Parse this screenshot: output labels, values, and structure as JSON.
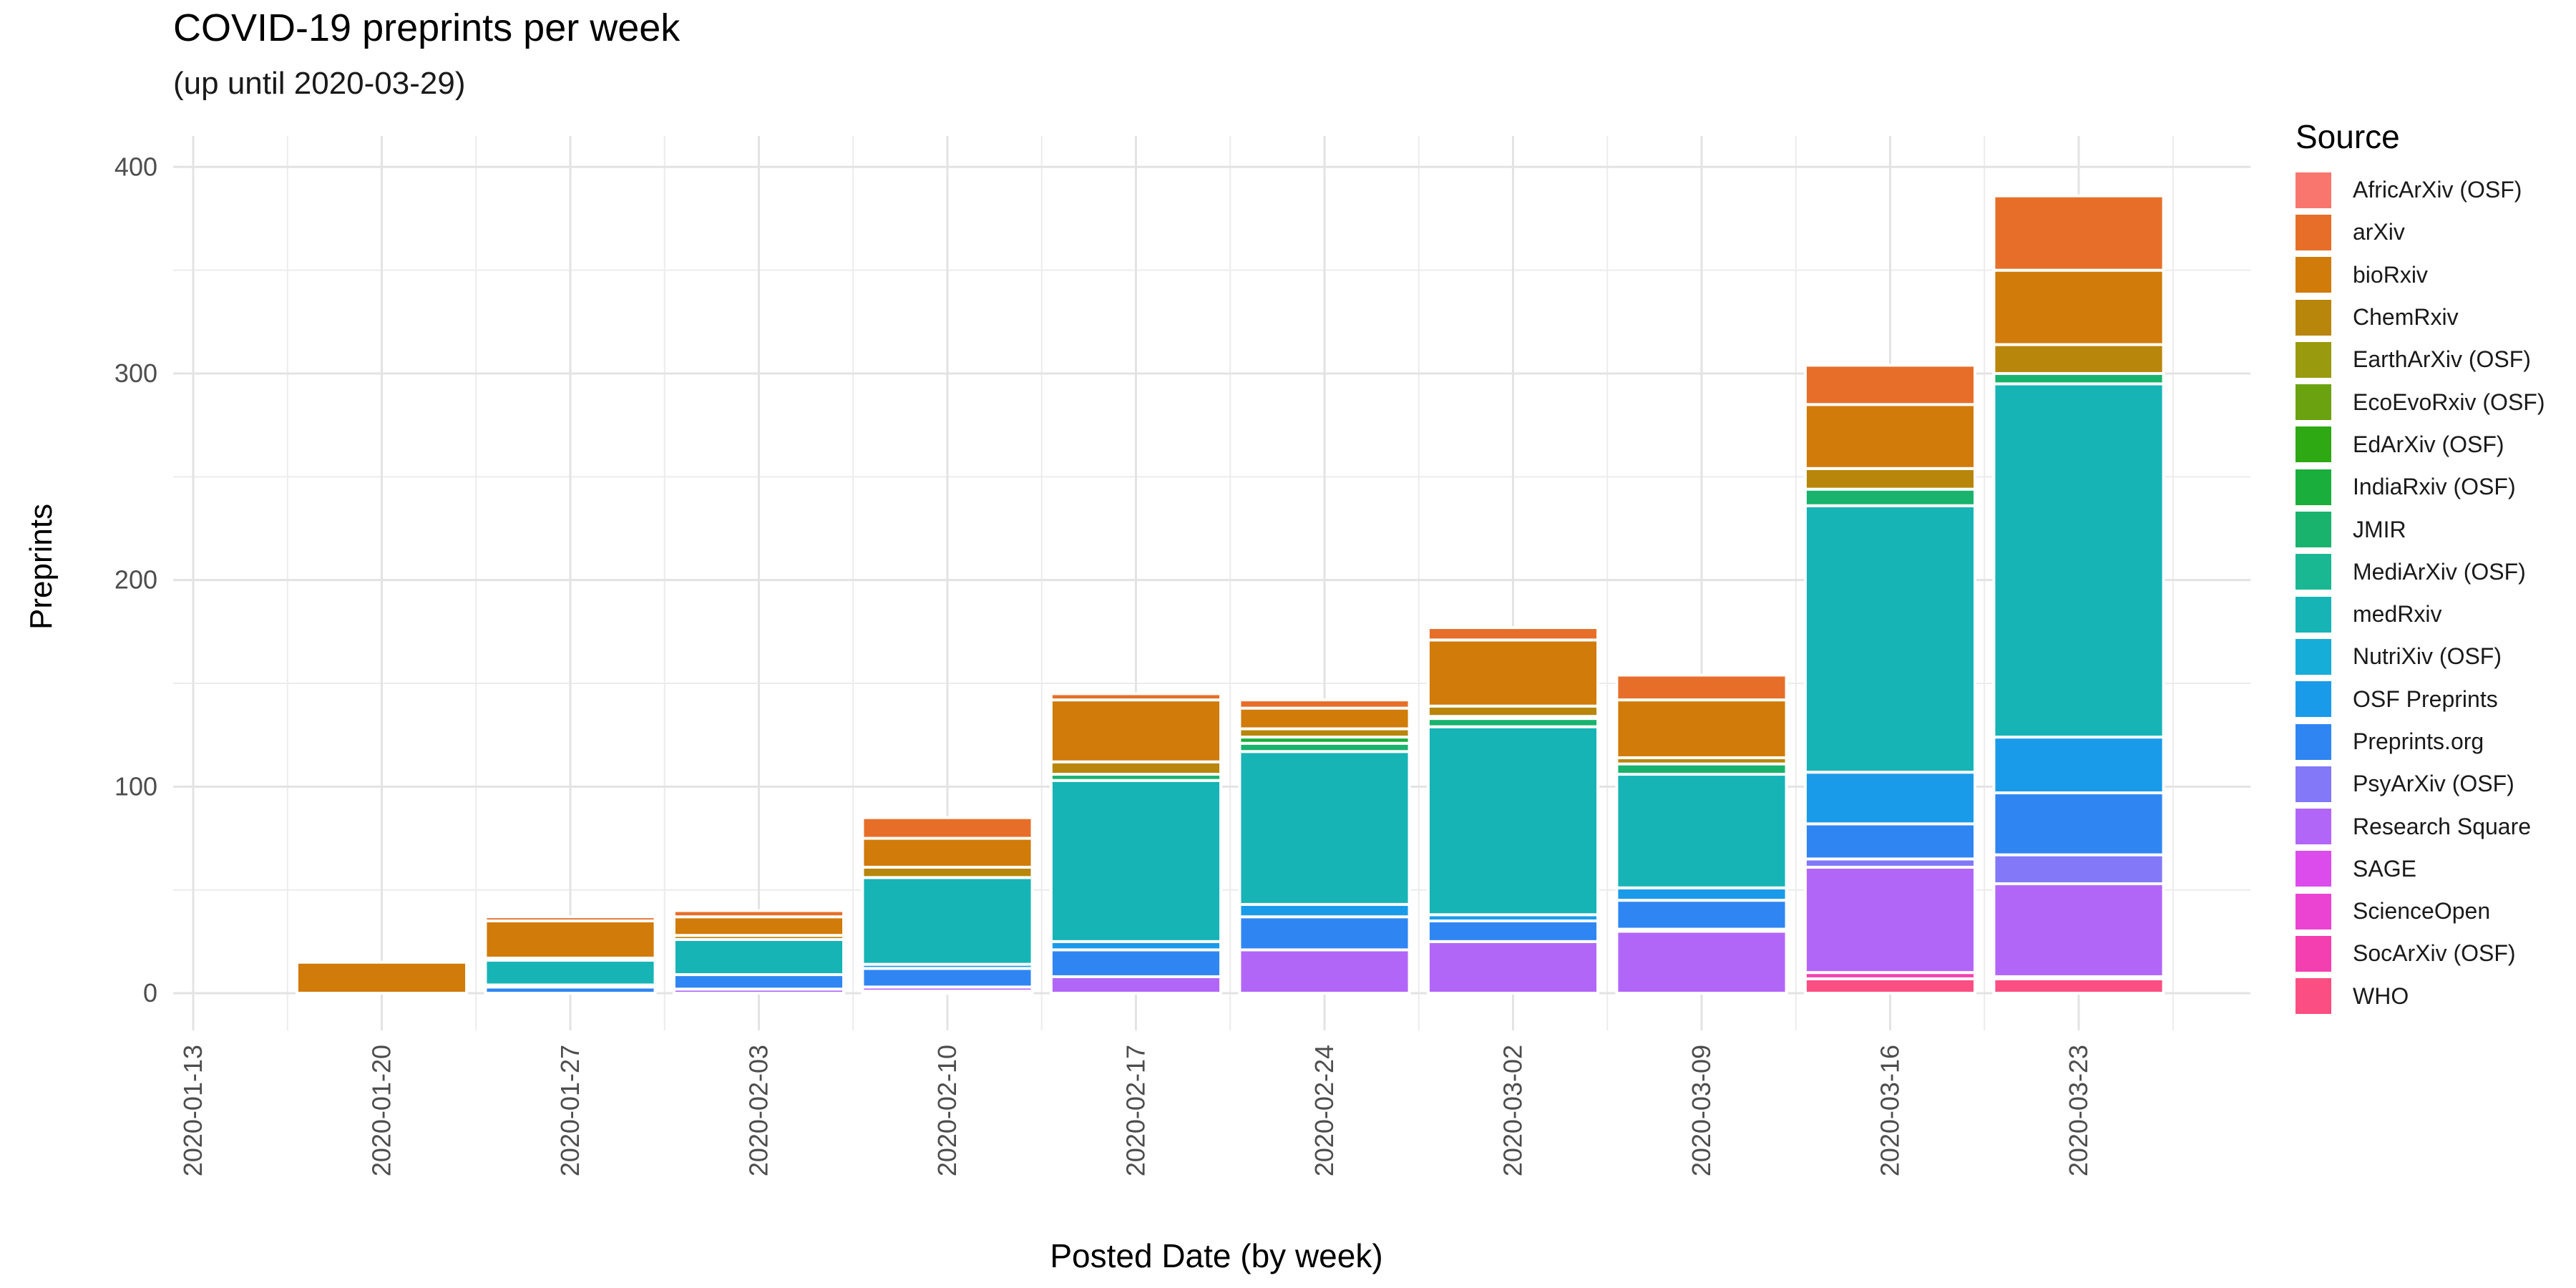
{
  "chart_data": {
    "type": "bar",
    "stacked": true,
    "title": "COVID-19 preprints per week",
    "subtitle": "(up until 2020-03-29)",
    "xlabel": "Posted Date (by week)",
    "ylabel": "Preprints",
    "legend_title": "Source",
    "legend_position": "right",
    "grid": true,
    "ylim": [
      -18,
      415
    ],
    "yticks": [
      0,
      100,
      200,
      300,
      400
    ],
    "categories": [
      "2020-01-13",
      "2020-01-20",
      "2020-01-27",
      "2020-02-03",
      "2020-02-10",
      "2020-02-17",
      "2020-02-24",
      "2020-03-02",
      "2020-03-09",
      "2020-03-16",
      "2020-03-23"
    ],
    "series": [
      {
        "name": "AfricArXiv (OSF)",
        "color": "#F8766D",
        "values": [
          0,
          0,
          0,
          0,
          0,
          0,
          0,
          0,
          0,
          0,
          0
        ]
      },
      {
        "name": "arXiv",
        "color": "#E76E28",
        "values": [
          0,
          0,
          2,
          3,
          10,
          3,
          4,
          6,
          12,
          19,
          36
        ]
      },
      {
        "name": "bioRxiv",
        "color": "#D07B0A",
        "values": [
          0,
          15,
          18,
          9,
          14,
          30,
          10,
          32,
          28,
          31,
          36
        ]
      },
      {
        "name": "ChemRxiv",
        "color": "#B8860B",
        "values": [
          0,
          0,
          1,
          2,
          5,
          6,
          4,
          5,
          3,
          10,
          14
        ]
      },
      {
        "name": "EarthArXiv (OSF)",
        "color": "#9A9A0E",
        "values": [
          0,
          0,
          0,
          0,
          0,
          0,
          0,
          0,
          0,
          0,
          0
        ]
      },
      {
        "name": "EcoEvoRxiv (OSF)",
        "color": "#6BA20F",
        "values": [
          0,
          0,
          0,
          0,
          0,
          0,
          0,
          0,
          0,
          0,
          0
        ]
      },
      {
        "name": "EdArXiv (OSF)",
        "color": "#2EA813",
        "values": [
          0,
          0,
          0,
          0,
          0,
          0,
          0,
          0,
          0,
          0,
          0
        ]
      },
      {
        "name": "IndiaRxiv (OSF)",
        "color": "#1AAE3C",
        "values": [
          0,
          0,
          0,
          0,
          0,
          0,
          3,
          1,
          0,
          0,
          0
        ]
      },
      {
        "name": "JMIR",
        "color": "#19B36E",
        "values": [
          0,
          0,
          0,
          0,
          0,
          3,
          4,
          4,
          5,
          8,
          5
        ]
      },
      {
        "name": "MediArXiv (OSF)",
        "color": "#19B893",
        "values": [
          0,
          0,
          0,
          0,
          0,
          0,
          0,
          0,
          0,
          0,
          0
        ]
      },
      {
        "name": "medRxiv",
        "color": "#17B4B6",
        "values": [
          0,
          0,
          12,
          17,
          42,
          78,
          74,
          91,
          55,
          129,
          171
        ]
      },
      {
        "name": "NutriXiv (OSF)",
        "color": "#16ADD8",
        "values": [
          0,
          0,
          0,
          0,
          0,
          0,
          0,
          0,
          0,
          0,
          0
        ]
      },
      {
        "name": "OSF Preprints",
        "color": "#1A9BEA",
        "values": [
          0,
          0,
          1,
          0,
          2,
          4,
          6,
          3,
          6,
          25,
          27
        ]
      },
      {
        "name": "Preprints.org",
        "color": "#2F86F2",
        "values": [
          0,
          0,
          3,
          7,
          9,
          13,
          16,
          10,
          14,
          17,
          30
        ]
      },
      {
        "name": "PsyArXiv (OSF)",
        "color": "#8278F8",
        "values": [
          0,
          0,
          0,
          0,
          0,
          0,
          0,
          0,
          1,
          4,
          14
        ]
      },
      {
        "name": "Research Square",
        "color": "#B266F8",
        "values": [
          0,
          0,
          0,
          2,
          2,
          8,
          21,
          25,
          30,
          51,
          45
        ]
      },
      {
        "name": "SAGE",
        "color": "#DC4CEC",
        "values": [
          0,
          0,
          0,
          0,
          0,
          0,
          0,
          0,
          0,
          0,
          0
        ]
      },
      {
        "name": "ScienceOpen",
        "color": "#EB44D3",
        "values": [
          0,
          0,
          0,
          0,
          1,
          0,
          0,
          0,
          0,
          0,
          0
        ]
      },
      {
        "name": "SocArXiv (OSF)",
        "color": "#F43FB0",
        "values": [
          0,
          0,
          0,
          0,
          0,
          0,
          0,
          0,
          0,
          3,
          1
        ]
      },
      {
        "name": "WHO",
        "color": "#FB4E82",
        "values": [
          0,
          0,
          0,
          0,
          0,
          0,
          0,
          0,
          0,
          7,
          7
        ]
      }
    ]
  }
}
